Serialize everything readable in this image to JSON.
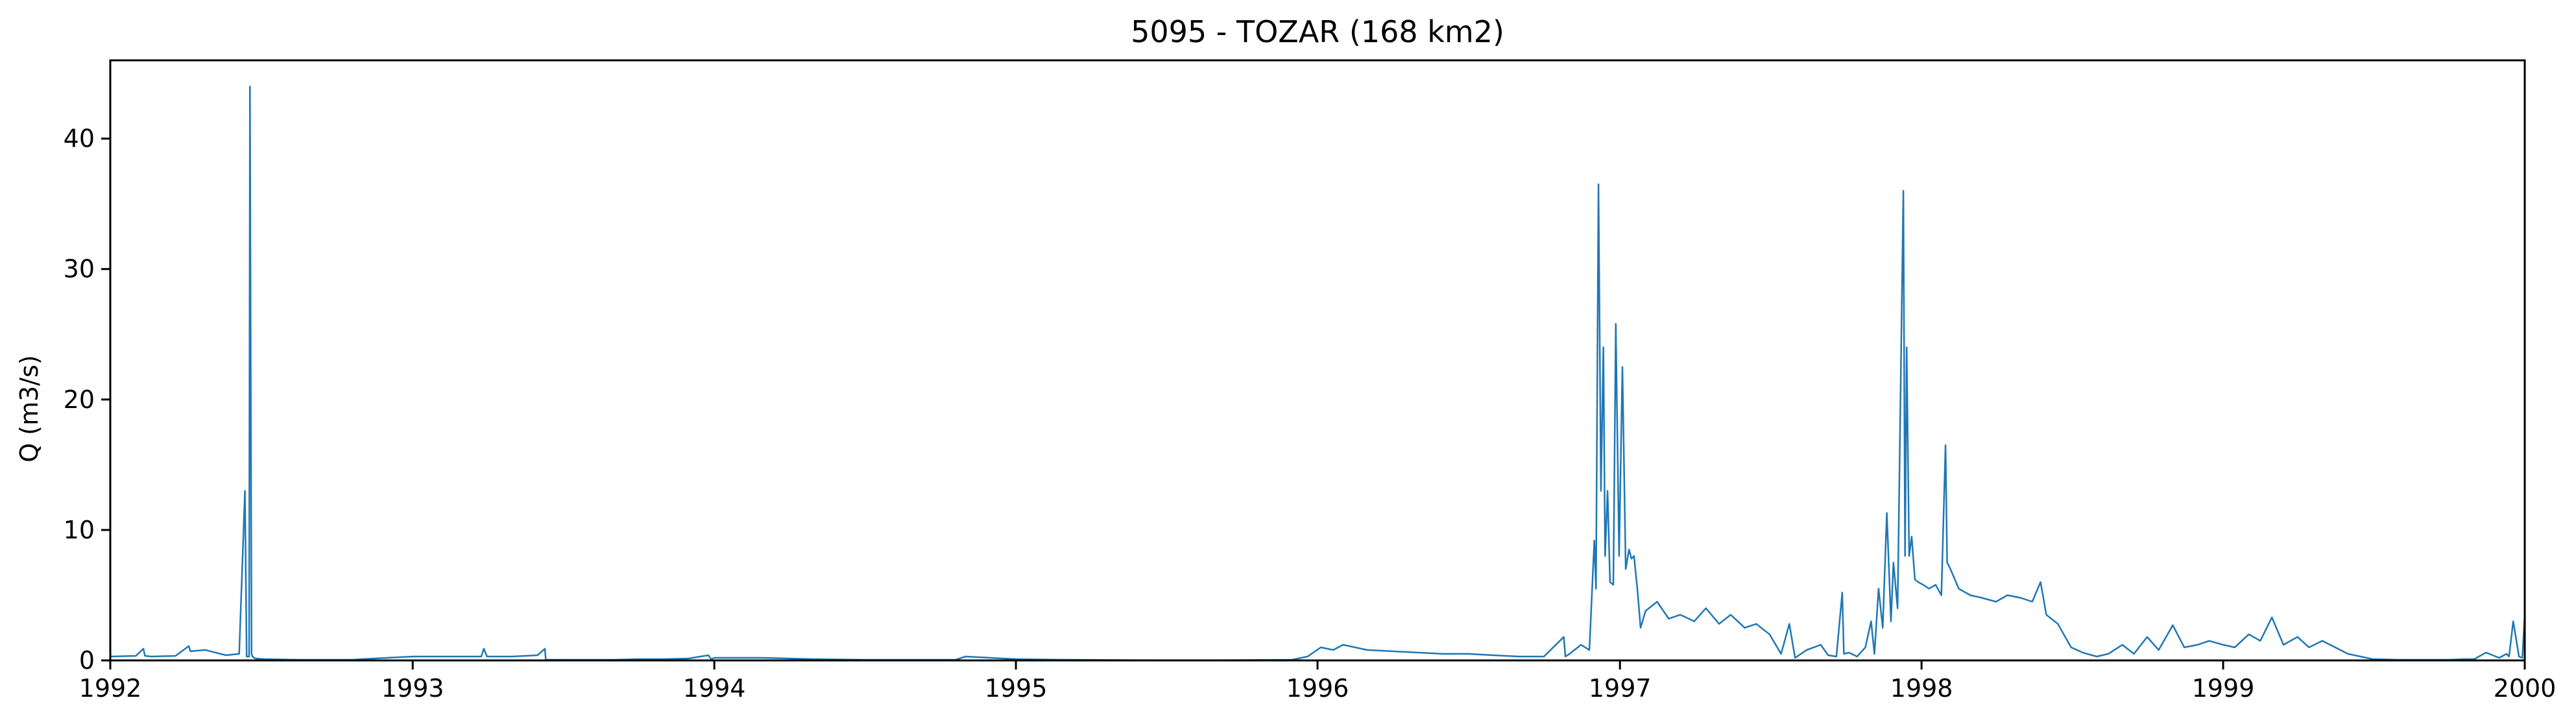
{
  "chart_data": {
    "type": "line",
    "title": "5095 - TOZAR (168 km2)",
    "xlabel": "",
    "ylabel": "Q (m3/s)",
    "xlim": [
      "1992-01-01",
      "2000-01-01"
    ],
    "ylim": [
      0,
      46
    ],
    "grid": false,
    "line_color": "#1f77b4",
    "x_ticks": [
      {
        "date": "1992-01-01",
        "label": "1992"
      },
      {
        "date": "1993-01-01",
        "label": "1993"
      },
      {
        "date": "1994-01-01",
        "label": "1994"
      },
      {
        "date": "1995-01-01",
        "label": "1995"
      },
      {
        "date": "1996-01-01",
        "label": "1996"
      },
      {
        "date": "1997-01-01",
        "label": "1997"
      },
      {
        "date": "1998-01-01",
        "label": "1998"
      },
      {
        "date": "1999-01-01",
        "label": "1999"
      },
      {
        "date": "2000-01-01",
        "label": "2000"
      }
    ],
    "y_ticks": [
      {
        "value": 0,
        "label": "0"
      },
      {
        "value": 10,
        "label": "10"
      },
      {
        "value": 20,
        "label": "20"
      },
      {
        "value": 30,
        "label": "30"
      },
      {
        "value": 40,
        "label": "40"
      }
    ],
    "series": [
      {
        "x": [
          "1992-01-01",
          "1992-02-01",
          "1992-02-10",
          "1992-02-12",
          "1992-02-20",
          "1992-03-20",
          "1992-04-05",
          "1992-04-07",
          "1992-04-25",
          "1992-05-20",
          "1992-06-05",
          "1992-06-12",
          "1992-06-14",
          "1992-06-17",
          "1992-06-18",
          "1992-06-20",
          "1992-06-21",
          "1992-06-23",
          "1992-06-25",
          "1992-07-05",
          "1992-08-15",
          "1992-10-20",
          "1992-11-01",
          "1992-12-01",
          "1993-01-01",
          "1993-03-01",
          "1993-03-25",
          "1993-03-28",
          "1993-04-01",
          "1993-05-01",
          "1993-06-01",
          "1993-06-10",
          "1993-06-11",
          "1993-07-01",
          "1993-09-01",
          "1993-10-01",
          "1993-11-01",
          "1993-12-01",
          "1993-12-25",
          "1993-12-28",
          "1994-01-01",
          "1994-03-01",
          "1994-05-01",
          "1994-07-01",
          "1994-09-01",
          "1994-10-20",
          "1994-11-01",
          "1994-12-01",
          "1995-01-01",
          "1995-03-01",
          "1995-06-01",
          "1995-09-01",
          "1995-12-01",
          "1995-12-20",
          "1996-01-05",
          "1996-01-20",
          "1996-02-01",
          "1996-03-01",
          "1996-04-01",
          "1996-05-01",
          "1996-06-01",
          "1996-07-01",
          "1996-08-01",
          "1996-09-01",
          "1996-10-01",
          "1996-10-25",
          "1996-10-27",
          "1996-11-01",
          "1996-11-15",
          "1996-11-25",
          "1996-12-01",
          "1996-12-03",
          "1996-12-06",
          "1996-12-09",
          "1996-12-12",
          "1996-12-14",
          "1996-12-17",
          "1996-12-20",
          "1996-12-24",
          "1996-12-27",
          "1996-12-31",
          "1997-01-04",
          "1997-01-08",
          "1997-01-12",
          "1997-01-15",
          "1997-01-18",
          "1997-01-22",
          "1997-01-26",
          "1997-02-01",
          "1997-02-15",
          "1997-03-01",
          "1997-03-15",
          "1997-04-01",
          "1997-04-15",
          "1997-05-01",
          "1997-05-15",
          "1997-06-01",
          "1997-06-15",
          "1997-07-01",
          "1997-07-15",
          "1997-07-25",
          "1997-08-01",
          "1997-08-15",
          "1997-09-01",
          "1997-09-10",
          "1997-09-20",
          "1997-09-27",
          "1997-09-29",
          "1997-10-05",
          "1997-10-15",
          "1997-10-25",
          "1997-11-01",
          "1997-11-05",
          "1997-11-10",
          "1997-11-15",
          "1997-11-20",
          "1997-11-25",
          "1997-11-28",
          "1997-12-03",
          "1997-12-10",
          "1997-12-12",
          "1997-12-14",
          "1997-12-17",
          "1997-12-20",
          "1997-12-24",
          "1997-12-28",
          "1998-01-03",
          "1998-01-10",
          "1998-01-18",
          "1998-01-25",
          "1998-01-30",
          "1998-02-01",
          "1998-02-05",
          "1998-02-15",
          "1998-03-01",
          "1998-03-15",
          "1998-04-01",
          "1998-04-15",
          "1998-05-01",
          "1998-05-15",
          "1998-05-25",
          "1998-06-01",
          "1998-06-15",
          "1998-07-01",
          "1998-07-15",
          "1998-08-01",
          "1998-08-15",
          "1998-09-01",
          "1998-09-15",
          "1998-10-01",
          "1998-10-15",
          "1998-11-01",
          "1998-11-15",
          "1998-12-01",
          "1998-12-15",
          "1999-01-01",
          "1999-01-15",
          "1999-02-01",
          "1999-02-15",
          "1999-03-01",
          "1999-03-15",
          "1999-04-01",
          "1999-04-15",
          "1999-05-01",
          "1999-06-01",
          "1999-07-01",
          "1999-08-01",
          "1999-09-01",
          "1999-10-01",
          "1999-10-20",
          "1999-11-01",
          "1999-11-15",
          "1999-12-01",
          "1999-12-10",
          "1999-12-13",
          "1999-12-18",
          "1999-12-25",
          "1999-12-29",
          "2000-01-01"
        ],
        "y": [
          0.3,
          0.35,
          0.9,
          0.35,
          0.3,
          0.35,
          1.1,
          0.7,
          0.8,
          0.4,
          0.5,
          13,
          0.3,
          0.3,
          44,
          0.5,
          0.3,
          0.2,
          0.15,
          0.1,
          0.05,
          0.05,
          0.1,
          0.2,
          0.3,
          0.3,
          0.3,
          0.9,
          0.3,
          0.3,
          0.4,
          0.9,
          0.05,
          0.05,
          0.05,
          0.1,
          0.1,
          0.15,
          0.4,
          0.1,
          0.2,
          0.2,
          0.1,
          0.05,
          0.05,
          0.05,
          0.3,
          0.2,
          0.1,
          0.05,
          0.02,
          0.02,
          0.05,
          0.3,
          1.0,
          0.8,
          1.2,
          0.8,
          0.7,
          0.6,
          0.5,
          0.5,
          0.4,
          0.3,
          0.3,
          1.8,
          0.3,
          0.5,
          1.2,
          0.8,
          9.2,
          5.5,
          36.5,
          13.0,
          24,
          8,
          13,
          6,
          5.8,
          25.8,
          8,
          22.5,
          7,
          8.5,
          7.8,
          8.0,
          5.5,
          2.5,
          3.8,
          4.5,
          3.2,
          3.5,
          3.0,
          4.0,
          2.8,
          3.5,
          2.5,
          2.8,
          2.0,
          0.5,
          2.8,
          0.2,
          0.8,
          1.2,
          0.4,
          0.3,
          5.2,
          0.5,
          0.6,
          0.3,
          1.0,
          3.0,
          0.5,
          5.5,
          2.5,
          11.3,
          3.0,
          7.5,
          4.0,
          36,
          8,
          24,
          8,
          9.5,
          6.2,
          6.0,
          5.8,
          5.5,
          5.8,
          5.0,
          16.5,
          7.5,
          7.0,
          5.5,
          5.0,
          4.8,
          4.5,
          5.0,
          4.8,
          4.5,
          6.0,
          3.5,
          2.8,
          1.0,
          0.6,
          0.3,
          0.5,
          1.2,
          0.5,
          1.8,
          0.8,
          2.7,
          1.0,
          1.2,
          1.5,
          1.2,
          1.0,
          2.0,
          1.5,
          3.3,
          1.2,
          1.8,
          1.0,
          1.5,
          0.5,
          0.1,
          0.05,
          0.05,
          0.05,
          0.1,
          0.1,
          0.6,
          0.2,
          0.5,
          0.3,
          3.0,
          0.3,
          0.2,
          3.5
        ]
      }
    ]
  }
}
